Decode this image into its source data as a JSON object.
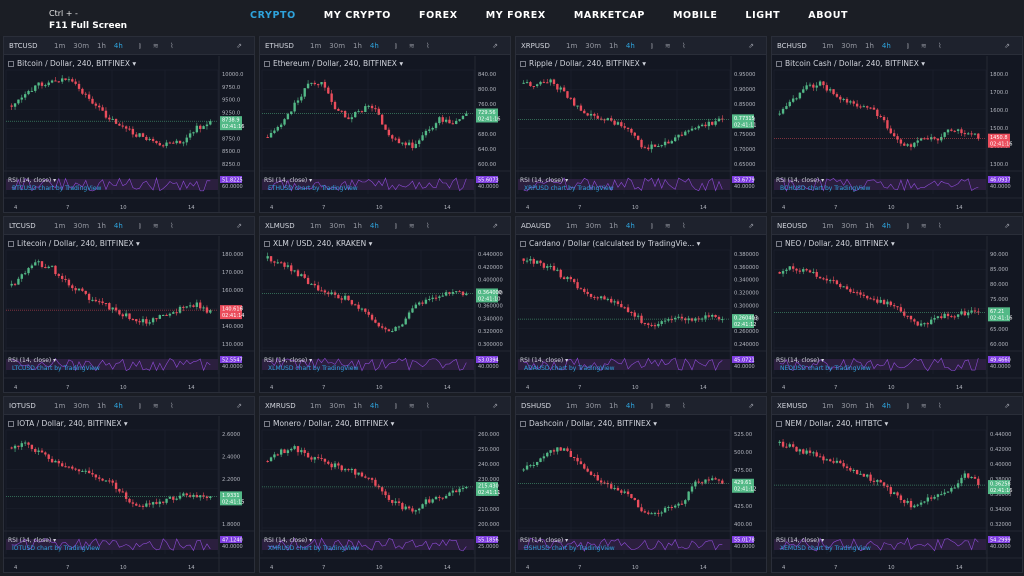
{
  "header": {
    "shortcut_hint": "Ctrl + -",
    "fullscreen_hint": "F11 Full Screen"
  },
  "nav": [
    {
      "label": "CRYPTO",
      "active": true
    },
    {
      "label": "MY CRYPTO",
      "active": false
    },
    {
      "label": "FOREX",
      "active": false
    },
    {
      "label": "MY FOREX",
      "active": false
    },
    {
      "label": "MARKETCAP",
      "active": false
    },
    {
      "label": "MOBILE",
      "active": false
    },
    {
      "label": "LIGHT",
      "active": false
    },
    {
      "label": "ABOUT",
      "active": false
    }
  ],
  "toolbar": {
    "timeframes": [
      "1m",
      "30m",
      "1h",
      "4h"
    ],
    "selected_timeframe": "4h",
    "icons": [
      "candles-icon",
      "indicators-icon",
      "compare-icon",
      "fullscreen-icon"
    ]
  },
  "colors": {
    "up": "#53b987",
    "down": "#eb4d5c",
    "rsi_band": "#2b1f3e",
    "rsi_line": "#8e4bd6",
    "accent": "#2ea3dc",
    "price_tag_down": "#eb4d5c",
    "price_tag_up": "#53b987",
    "rsi_tag": "#7e3ee0"
  },
  "panels": [
    {
      "symbol": "BTCUSD",
      "title": "Bitcoin / Dollar, 240, BITFINEX",
      "axis": [
        "10000.0",
        "9750.0",
        "9500.0",
        "9250.0",
        "9000.0",
        "8750.0",
        "8500.0",
        "8250.0"
      ],
      "price_tag": "8738.9",
      "price_tag_time": "02:41:16",
      "last_up": true,
      "rsi_value": "51.8225",
      "rsi_axis": "60.0000",
      "link": "BTCUSD chart by TradingView",
      "xticks": [
        "4",
        "7",
        "10",
        "14"
      ],
      "shape": [
        0.35,
        0.25,
        0.12,
        0.08,
        0.05,
        0.15,
        0.3,
        0.45,
        0.55,
        0.65,
        0.7,
        0.8,
        0.78,
        0.75,
        0.6,
        0.55
      ]
    },
    {
      "symbol": "ETHUSD",
      "title": "Ethereum / Dollar, 240, BITFINEX",
      "axis": [
        "840.00",
        "800.00",
        "760.00",
        "720.00",
        "680.00",
        "640.00",
        "600.00"
      ],
      "price_tag": "729.56",
      "price_tag_time": "02:41:16",
      "last_up": true,
      "rsi_value": "55.6073",
      "rsi_axis": "40.0000",
      "link": "ETHUSD chart by TradingView",
      "xticks": [
        "4",
        "7",
        "10",
        "14"
      ],
      "shape": [
        0.7,
        0.55,
        0.35,
        0.12,
        0.1,
        0.35,
        0.5,
        0.4,
        0.35,
        0.65,
        0.75,
        0.8,
        0.65,
        0.5,
        0.55,
        0.45
      ]
    },
    {
      "symbol": "XRPUSD",
      "title": "Ripple / Dollar, 240, BITFINEX",
      "axis": [
        "0.95000",
        "0.90000",
        "0.85000",
        "0.80000",
        "0.75000",
        "0.70000",
        "0.65000"
      ],
      "price_tag": "0.77315",
      "price_tag_time": "02:41:11",
      "last_up": true,
      "rsi_value": "53.6779",
      "rsi_axis": "40.0000",
      "link": "XRPUSD chart by TradingView",
      "xticks": [
        "4",
        "7",
        "10",
        "14"
      ],
      "shape": [
        0.1,
        0.12,
        0.08,
        0.2,
        0.35,
        0.45,
        0.5,
        0.55,
        0.65,
        0.8,
        0.82,
        0.75,
        0.65,
        0.6,
        0.55,
        0.5
      ]
    },
    {
      "symbol": "BCHUSD",
      "title": "Bitcoin Cash / Dollar, 240, BITFINEX",
      "axis": [
        "1800.0",
        "1700.0",
        "1600.0",
        "1500.0",
        "1400.0",
        "1300.0"
      ],
      "price_tag": "1450.8",
      "price_tag_time": "02:41:16",
      "last_up": false,
      "rsi_value": "46.0937",
      "rsi_axis": "40.0000",
      "link": "BCHUSD chart by TradingView",
      "xticks": [
        "4",
        "7",
        "10",
        "14"
      ],
      "shape": [
        0.45,
        0.3,
        0.15,
        0.1,
        0.2,
        0.3,
        0.35,
        0.4,
        0.55,
        0.75,
        0.8,
        0.7,
        0.72,
        0.6,
        0.65,
        0.7
      ]
    },
    {
      "symbol": "LTCUSD",
      "title": "Litecoin / Dollar, 240, BITFINEX",
      "axis": [
        "180.000",
        "170.000",
        "160.000",
        "150.000",
        "140.000",
        "130.000"
      ],
      "price_tag": "140.616",
      "price_tag_time": "02:41:14",
      "last_up": false,
      "rsi_value": "52.5547",
      "rsi_axis": "40.0000",
      "link": "LTCUSD chart by TradingView",
      "xticks": [
        "4",
        "7",
        "10",
        "14"
      ],
      "shape": [
        0.35,
        0.2,
        0.1,
        0.15,
        0.3,
        0.4,
        0.5,
        0.55,
        0.65,
        0.7,
        0.75,
        0.72,
        0.65,
        0.6,
        0.55,
        0.65
      ]
    },
    {
      "symbol": "XLMUSD",
      "title": "XLM / USD, 240, KRAKEN",
      "axis": [
        "0.440000",
        "0.420000",
        "0.400000",
        "0.380000",
        "0.360000",
        "0.340000",
        "0.320000",
        "0.300000"
      ],
      "price_tag": "0.364000",
      "price_tag_time": "02:41:10",
      "last_up": true,
      "rsi_value": "53.0394",
      "rsi_axis": "40.0000",
      "link": "XLMUSD chart by TradingView",
      "xticks": [
        "4",
        "7",
        "10",
        "14"
      ],
      "shape": [
        0.05,
        0.1,
        0.2,
        0.3,
        0.4,
        0.45,
        0.5,
        0.6,
        0.75,
        0.85,
        0.8,
        0.6,
        0.5,
        0.45,
        0.4,
        0.45
      ]
    },
    {
      "symbol": "ADAUSD",
      "title": "Cardano / Dollar (calculated by TradingVie...",
      "axis": [
        "0.380000",
        "0.360000",
        "0.340000",
        "0.320000",
        "0.300000",
        "0.280000",
        "0.260000",
        "0.240000"
      ],
      "price_tag": "0.260403",
      "price_tag_time": "02:41:12",
      "last_up": true,
      "rsi_value": "45.0721",
      "rsi_axis": "40.0000",
      "link": "ADAUSD chart by TradingView",
      "xticks": [
        "4",
        "7",
        "10",
        "14"
      ],
      "shape": [
        0.05,
        0.1,
        0.15,
        0.25,
        0.35,
        0.45,
        0.5,
        0.55,
        0.65,
        0.75,
        0.78,
        0.74,
        0.72,
        0.73,
        0.7,
        0.72
      ]
    },
    {
      "symbol": "NEOUSD",
      "title": "NEO / Dollar, 240, BITFINEX",
      "axis": [
        "90.000",
        "85.000",
        "80.000",
        "75.000",
        "70.000",
        "65.000",
        "60.000"
      ],
      "price_tag": "67.21",
      "price_tag_time": "02:41:16",
      "last_up": true,
      "rsi_value": "49.4660",
      "rsi_axis": "40.0000",
      "link": "NEOUSD chart by TradingView",
      "xticks": [
        "4",
        "7",
        "10",
        "14"
      ],
      "shape": [
        0.2,
        0.15,
        0.2,
        0.25,
        0.3,
        0.4,
        0.45,
        0.5,
        0.55,
        0.6,
        0.75,
        0.8,
        0.7,
        0.68,
        0.65,
        0.63
      ]
    },
    {
      "symbol": "IOTUSD",
      "title": "IOTA / Dollar, 240, BITFINEX",
      "axis": [
        "2.6000",
        "2.4000",
        "2.2000",
        "2.0000",
        "1.8000"
      ],
      "price_tag": "1.9331",
      "price_tag_time": "02:41:15",
      "last_up": true,
      "rsi_value": "47.1240",
      "rsi_axis": "40.0000",
      "link": "IOTUSD chart by TradingView",
      "xticks": [
        "4",
        "7",
        "10",
        "14"
      ],
      "shape": [
        0.15,
        0.1,
        0.2,
        0.3,
        0.35,
        0.4,
        0.45,
        0.5,
        0.6,
        0.75,
        0.8,
        0.75,
        0.72,
        0.68,
        0.7,
        0.72
      ]
    },
    {
      "symbol": "XMRUSD",
      "title": "Monero / Dollar, 240, BITFINEX",
      "axis": [
        "260.000",
        "250.000",
        "240.000",
        "230.000",
        "220.000",
        "210.000",
        "200.000"
      ],
      "price_tag": "215.430",
      "price_tag_time": "02:41:11",
      "last_up": true,
      "rsi_value": "55.1856",
      "rsi_axis": "25.0000",
      "link": "XMRUSD chart by TradingView",
      "xticks": [
        "4",
        "7",
        "10",
        "14"
      ],
      "shape": [
        0.3,
        0.2,
        0.15,
        0.25,
        0.3,
        0.35,
        0.4,
        0.45,
        0.55,
        0.7,
        0.8,
        0.85,
        0.75,
        0.7,
        0.65,
        0.6
      ]
    },
    {
      "symbol": "DSHUSD",
      "title": "Dashcoin / Dollar, 240, BITFINEX",
      "axis": [
        "525.00",
        "500.00",
        "475.00",
        "450.00",
        "425.00",
        "400.00"
      ],
      "price_tag": "429.61",
      "price_tag_time": "02:41:12",
      "last_up": true,
      "rsi_value": "55.0178",
      "rsi_axis": "40.0000",
      "link": "DSHUSD chart by TradingView",
      "xticks": [
        "4",
        "7",
        "10",
        "14"
      ],
      "shape": [
        0.4,
        0.3,
        0.2,
        0.15,
        0.3,
        0.45,
        0.55,
        0.6,
        0.7,
        0.85,
        0.88,
        0.8,
        0.75,
        0.55,
        0.5,
        0.55
      ]
    },
    {
      "symbol": "XEMUSD",
      "title": "NEM / Dollar, 240, HITBTC",
      "axis": [
        "0.44000",
        "0.42000",
        "0.40000",
        "0.38000",
        "0.36000",
        "0.34000",
        "0.32000"
      ],
      "price_tag": "0.36258",
      "price_tag_time": "02:41:16",
      "last_up": true,
      "rsi_value": "54.2999",
      "rsi_axis": "40.0000",
      "link": "XEMUSD chart by TradingView",
      "xticks": [
        "4",
        "7",
        "10",
        "14"
      ],
      "shape": [
        0.1,
        0.15,
        0.2,
        0.25,
        0.3,
        0.35,
        0.45,
        0.5,
        0.6,
        0.7,
        0.8,
        0.75,
        0.65,
        0.6,
        0.45,
        0.55
      ]
    }
  ]
}
